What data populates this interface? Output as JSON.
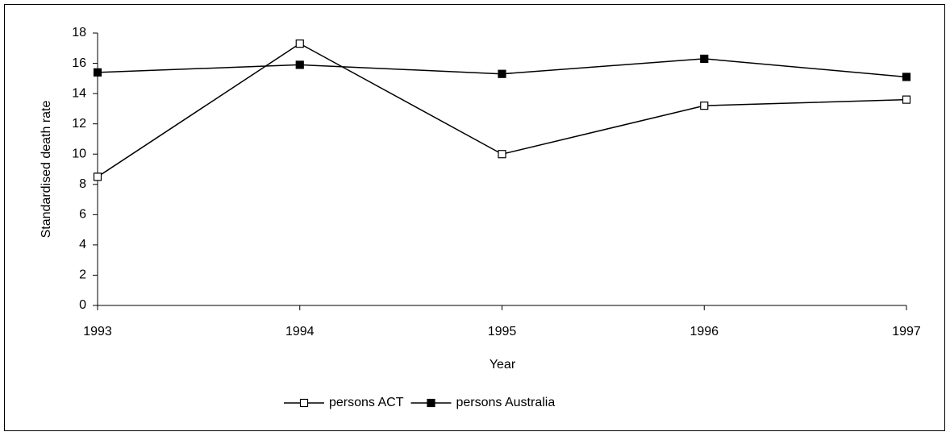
{
  "chart_data": {
    "type": "line",
    "x_label": "Year",
    "y_label": "Standardised death rate",
    "x": [
      1993,
      1994,
      1995,
      1996,
      1997
    ],
    "xlim": [
      1993,
      1997
    ],
    "xticks": [
      1993,
      1994,
      1995,
      1996,
      1997
    ],
    "ylim": [
      0,
      18
    ],
    "yticks": [
      0,
      2,
      4,
      6,
      8,
      10,
      12,
      14,
      16,
      18
    ],
    "grid": false,
    "legend": "bottom",
    "series": [
      {
        "name": "persons ACT",
        "color": "#000000",
        "marker_fill": "#ffffff",
        "values": [
          8.5,
          17.3,
          10.0,
          13.2,
          13.6
        ]
      },
      {
        "name": "persons Australia",
        "color": "#000000",
        "marker_fill": "#000000",
        "values": [
          15.4,
          15.9,
          15.3,
          16.3,
          15.1
        ]
      }
    ]
  }
}
